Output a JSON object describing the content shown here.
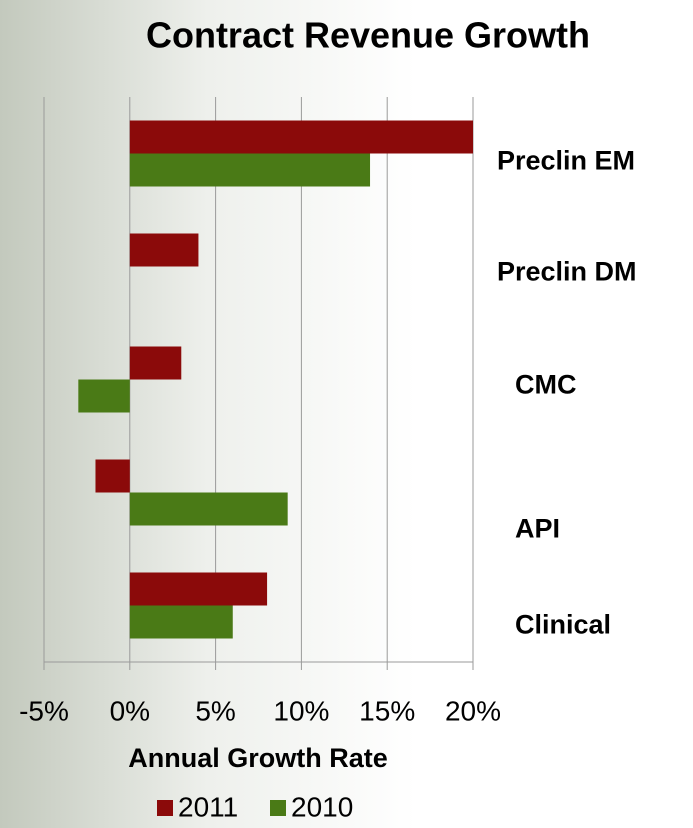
{
  "chart_data": {
    "type": "hbar",
    "title": "Contract Revenue Growth",
    "x_label": "Annual Growth Rate",
    "categories": [
      "Preclin EM",
      "Preclin DM",
      "CMC",
      "API",
      "Clinical"
    ],
    "series": [
      {
        "name": "2011",
        "color": "#8b0a0a",
        "values": [
          20,
          4,
          3,
          -2,
          8
        ]
      },
      {
        "name": "2010",
        "color": "#4a7a16",
        "values": [
          14,
          0,
          -3,
          9.2,
          6
        ]
      }
    ],
    "xlim": [
      -5,
      20
    ],
    "xticks": [
      {
        "value": -5,
        "label": "-5%"
      },
      {
        "value": 0,
        "label": "0%"
      },
      {
        "value": 5,
        "label": "5%"
      },
      {
        "value": 10,
        "label": "10%"
      },
      {
        "value": 15,
        "label": "15%"
      },
      {
        "value": 20,
        "label": "20%"
      }
    ],
    "grid": true,
    "legend": "bottom"
  }
}
